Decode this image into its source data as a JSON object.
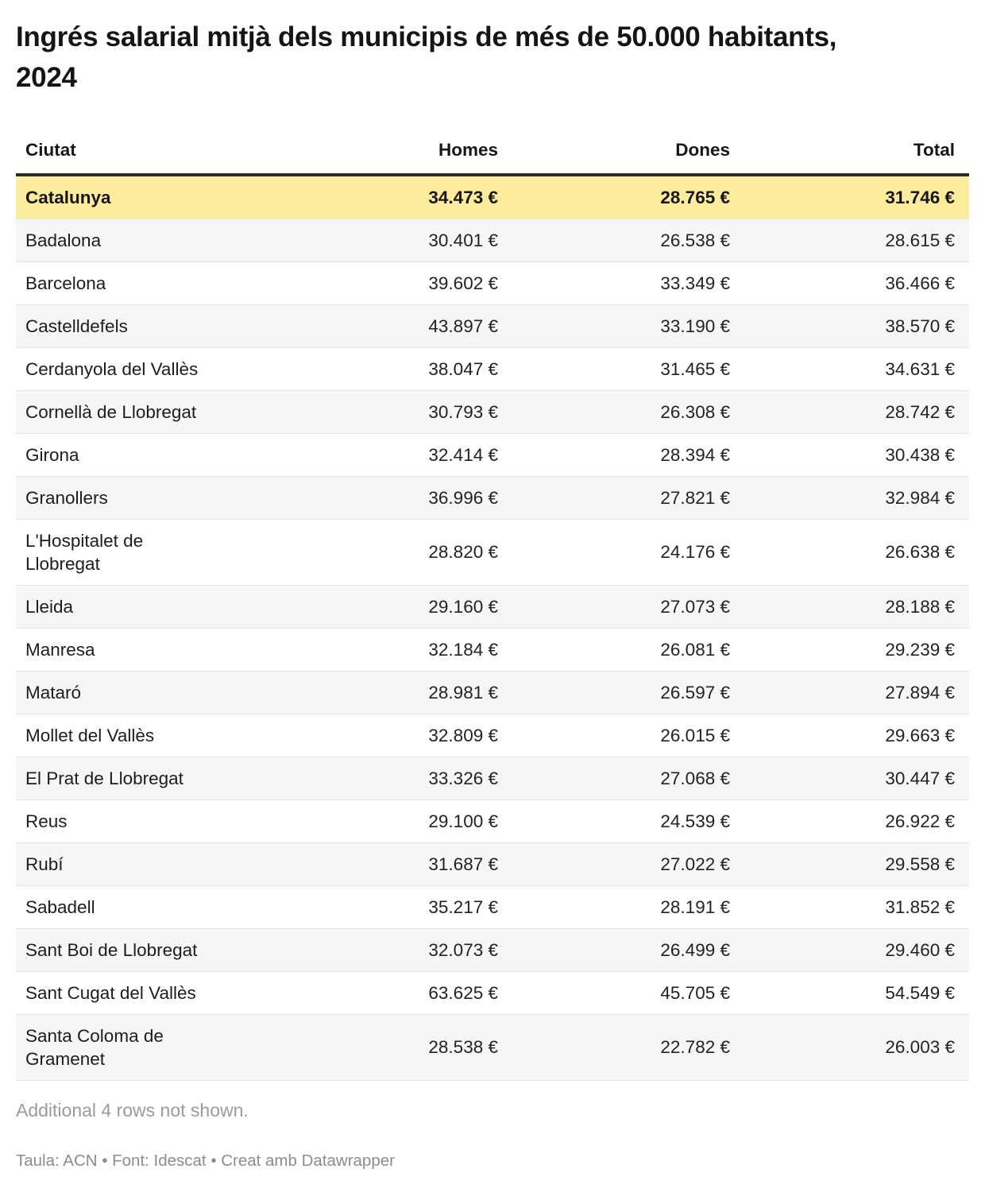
{
  "chart_data": {
    "type": "table",
    "title": "Ingrés salarial mitjà dels municipis de més de 50.000 habitants, 2024",
    "columns": [
      "Ciutat",
      "Homes",
      "Dones",
      "Total"
    ],
    "unit": "€",
    "number_format": "thousands-dot",
    "rows": [
      {
        "ciutat": "Catalunya",
        "homes": 34473,
        "dones": 28765,
        "total": 31746,
        "highlight": true
      },
      {
        "ciutat": "Badalona",
        "homes": 30401,
        "dones": 26538,
        "total": 28615
      },
      {
        "ciutat": "Barcelona",
        "homes": 39602,
        "dones": 33349,
        "total": 36466
      },
      {
        "ciutat": "Castelldefels",
        "homes": 43897,
        "dones": 33190,
        "total": 38570
      },
      {
        "ciutat": "Cerdanyola del Vallès",
        "homes": 38047,
        "dones": 31465,
        "total": 34631
      },
      {
        "ciutat": "Cornellà de Llobregat",
        "homes": 30793,
        "dones": 26308,
        "total": 28742
      },
      {
        "ciutat": "Girona",
        "homes": 32414,
        "dones": 28394,
        "total": 30438
      },
      {
        "ciutat": "Granollers",
        "homes": 36996,
        "dones": 27821,
        "total": 32984
      },
      {
        "ciutat": "L'Hospitalet de Llobregat",
        "homes": 28820,
        "dones": 24176,
        "total": 26638
      },
      {
        "ciutat": "Lleida",
        "homes": 29160,
        "dones": 27073,
        "total": 28188
      },
      {
        "ciutat": "Manresa",
        "homes": 32184,
        "dones": 26081,
        "total": 29239
      },
      {
        "ciutat": "Mataró",
        "homes": 28981,
        "dones": 26597,
        "total": 27894
      },
      {
        "ciutat": "Mollet del Vallès",
        "homes": 32809,
        "dones": 26015,
        "total": 29663
      },
      {
        "ciutat": "El Prat de Llobregat",
        "homes": 33326,
        "dones": 27068,
        "total": 30447
      },
      {
        "ciutat": "Reus",
        "homes": 29100,
        "dones": 24539,
        "total": 26922
      },
      {
        "ciutat": "Rubí",
        "homes": 31687,
        "dones": 27022,
        "total": 29558
      },
      {
        "ciutat": "Sabadell",
        "homes": 35217,
        "dones": 28191,
        "total": 31852
      },
      {
        "ciutat": "Sant Boi de Llobregat",
        "homes": 32073,
        "dones": 26499,
        "total": 29460
      },
      {
        "ciutat": "Sant Cugat del Vallès",
        "homes": 63625,
        "dones": 45705,
        "total": 54549
      },
      {
        "ciutat": "Santa Coloma de Gramenet",
        "homes": 28538,
        "dones": 22782,
        "total": 26003
      }
    ],
    "layout_hints": {
      "highlight_row": "Catalunya",
      "striped_rows": true,
      "numeric_alignment": "right"
    }
  },
  "footer": {
    "more_rows_note": "Additional 4 rows not shown.",
    "attribution": "Taula: ACN • Font: Idescat • Creat amb Datawrapper"
  },
  "colors": {
    "highlight_bg": "#FCEC9B",
    "alt_row_bg": "#F6F6F7",
    "header_border": "#2B2B2B",
    "row_border": "#E4E4E4",
    "text": "#1D1D1D",
    "muted_text": "#9B9B9B",
    "attribution_text": "#8C8C8C"
  }
}
